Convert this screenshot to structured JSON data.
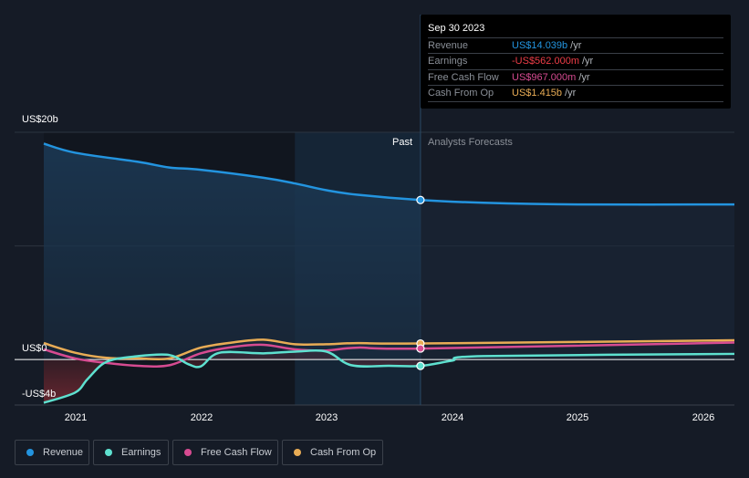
{
  "tooltip": {
    "date": "Sep 30 2023",
    "rows": [
      {
        "label": "Revenue",
        "value": "US$14.039b",
        "unit": "/yr",
        "color": "#2394df"
      },
      {
        "label": "Earnings",
        "value": "-US$562.000m",
        "unit": "/yr",
        "color": "#ee3d47"
      },
      {
        "label": "Free Cash Flow",
        "value": "US$967.000m",
        "unit": "/yr",
        "color": "#d64b91"
      },
      {
        "label": "Cash From Op",
        "value": "US$1.415b",
        "unit": "/yr",
        "color": "#e8ac55"
      }
    ]
  },
  "segments": {
    "past": "Past",
    "forecast": "Analysts Forecasts"
  },
  "chart_data": {
    "type": "line",
    "y_tick_labels": [
      "US$20b",
      "US$0",
      "-US$4b"
    ],
    "ylim": [
      -4,
      20
    ],
    "xlim": [
      2020.75,
      2026.25
    ],
    "x_tick_labels": [
      "2021",
      "2022",
      "2023",
      "2024",
      "2025",
      "2026"
    ],
    "x_ticks": [
      2021,
      2022,
      2023,
      2024,
      2025,
      2026
    ],
    "past_end": 2023.75,
    "highlight_start": 2022.75,
    "series": [
      {
        "name": "Revenue",
        "color": "#2394df",
        "x": [
          2020.75,
          2021,
          2021.5,
          2021.75,
          2022,
          2022.5,
          2022.75,
          2023,
          2023.25,
          2023.75,
          2024.25,
          2025,
          2026.25
        ],
        "values": [
          19.0,
          18.2,
          17.4,
          16.9,
          16.7,
          16.0,
          15.5,
          14.9,
          14.5,
          14.04,
          13.8,
          13.65,
          13.65
        ]
      },
      {
        "name": "Earnings",
        "color": "#5ee0cf",
        "x": [
          2020.75,
          2021,
          2021.1,
          2021.25,
          2021.5,
          2021.75,
          2021.9,
          2022,
          2022.15,
          2022.5,
          2022.75,
          2023,
          2023.2,
          2023.5,
          2023.75,
          2024,
          2024.25,
          2026.25
        ],
        "values": [
          -3.8,
          -2.9,
          -1.7,
          -0.2,
          0.3,
          0.4,
          -0.4,
          -0.6,
          0.6,
          0.55,
          0.7,
          0.7,
          -0.5,
          -0.55,
          -0.56,
          -0.1,
          0.3,
          0.5
        ]
      },
      {
        "name": "Free Cash Flow",
        "color": "#d64b91",
        "x": [
          2020.75,
          2021,
          2021.25,
          2021.5,
          2021.75,
          2022,
          2022.25,
          2022.5,
          2022.75,
          2023,
          2023.25,
          2023.75,
          2026.25
        ],
        "values": [
          0.9,
          0.1,
          -0.3,
          -0.55,
          -0.5,
          0.55,
          1.1,
          1.3,
          0.9,
          0.8,
          1.05,
          0.97,
          1.5
        ]
      },
      {
        "name": "Cash From Op",
        "color": "#e8ac55",
        "x": [
          2020.75,
          2021,
          2021.25,
          2021.5,
          2021.75,
          2022,
          2022.25,
          2022.5,
          2022.75,
          2023,
          2023.25,
          2023.75,
          2026.25
        ],
        "values": [
          1.45,
          0.6,
          0.15,
          0.1,
          0.1,
          1.05,
          1.5,
          1.75,
          1.35,
          1.35,
          1.45,
          1.415,
          1.7
        ]
      }
    ]
  }
}
